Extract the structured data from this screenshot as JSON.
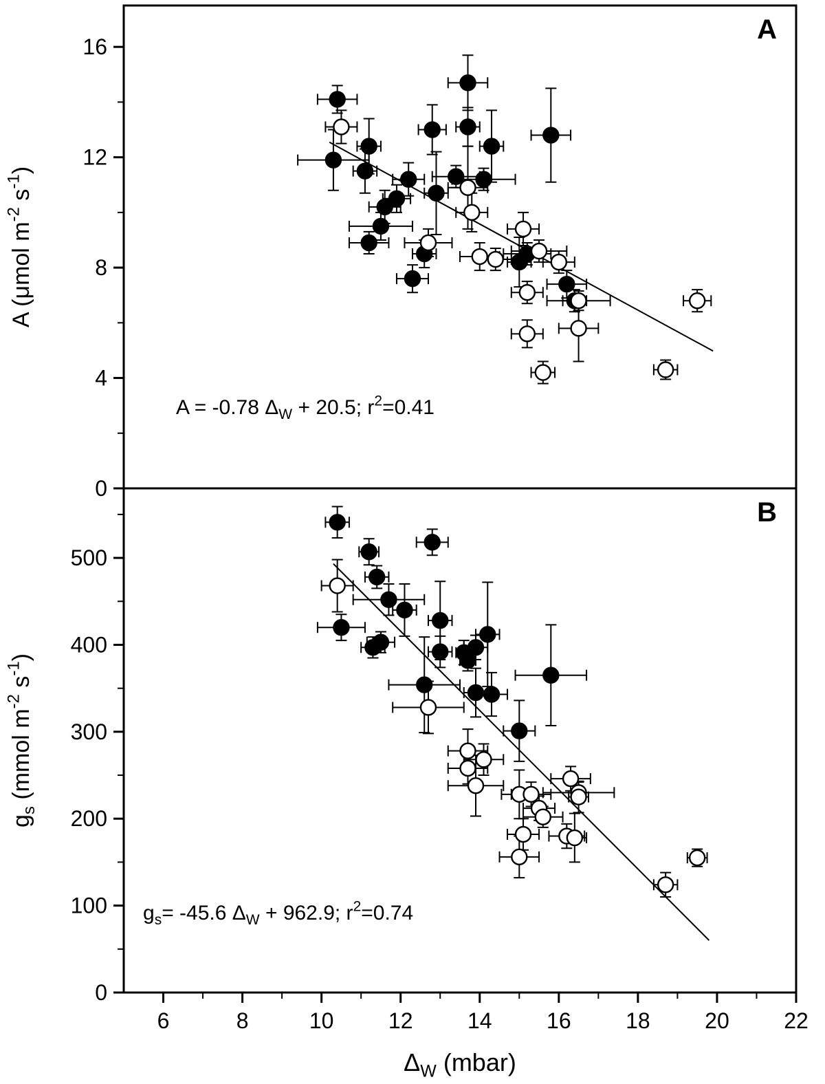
{
  "figure": {
    "background": "#ffffff",
    "axis_color": "#000000",
    "xlabel_text": "ΔW (mbar)",
    "xlabel_segments": [
      {
        "t": "Δ"
      },
      {
        "t": "W",
        "s": "sub"
      },
      {
        "t": " (mbar)"
      }
    ],
    "xlim": [
      5,
      22
    ],
    "xticks": [
      6,
      8,
      10,
      12,
      14,
      16,
      18,
      20,
      22
    ],
    "xminor": [
      7,
      9,
      11,
      13,
      15,
      17,
      19,
      21
    ]
  },
  "chart_data": [
    {
      "id": "A",
      "type": "scatter",
      "panel_label": "A",
      "title": "",
      "ylabel_text": "A (μmol m-2 s-1)",
      "ylabel_segments": [
        {
          "t": "A (μmol m"
        },
        {
          "t": "-2",
          "s": "sup"
        },
        {
          "t": " s"
        },
        {
          "t": "-1",
          "s": "sup"
        },
        {
          "t": ")"
        }
      ],
      "xlim": [
        5,
        22
      ],
      "ylim": [
        0,
        17.5
      ],
      "yticks": [
        0,
        4,
        8,
        12,
        16
      ],
      "yminor": [
        2,
        6,
        10,
        14
      ],
      "grid": false,
      "legend": "none",
      "equation_text": "A = -0.78 ΔW + 20.5;   r2=0.41",
      "equation_segments": [
        {
          "t": "A = -0.78 Δ"
        },
        {
          "t": "W",
          "s": "sub"
        },
        {
          "t": " + 20.5;   r"
        },
        {
          "t": "2",
          "s": "sup"
        },
        {
          "t": "=0.41"
        }
      ],
      "regression": {
        "slope": -0.78,
        "intercept": 20.5,
        "x1": 10.2,
        "x2": 19.9
      },
      "series": [
        {
          "name": "filled-circles",
          "marker": "filled-circle",
          "points": [
            [
              10.4,
              14.1,
              0.5,
              0.5
            ],
            [
              10.3,
              11.9,
              0.9,
              1.1
            ],
            [
              11.2,
              12.4,
              0.3,
              1.0
            ],
            [
              11.1,
              11.5,
              0.3,
              0.8
            ],
            [
              11.6,
              10.2,
              0.4,
              0.6
            ],
            [
              11.9,
              10.5,
              0.35,
              0.5
            ],
            [
              11.5,
              9.5,
              0.8,
              0.5
            ],
            [
              11.2,
              8.9,
              0.5,
              0.4
            ],
            [
              12.2,
              11.2,
              0.4,
              0.6
            ],
            [
              12.8,
              13.0,
              0.35,
              0.9
            ],
            [
              12.9,
              10.7,
              0.3,
              1.5
            ],
            [
              12.6,
              8.5,
              0.3,
              0.5
            ],
            [
              12.3,
              7.6,
              0.4,
              0.5
            ],
            [
              13.7,
              14.7,
              0.5,
              1.0
            ],
            [
              13.7,
              13.1,
              0.3,
              0.7
            ],
            [
              13.4,
              11.3,
              0.6,
              0.4
            ],
            [
              14.1,
              11.2,
              0.8,
              0.4
            ],
            [
              14.3,
              12.4,
              0.3,
              1.3
            ],
            [
              15.0,
              8.2,
              0.3,
              0.9
            ],
            [
              15.2,
              8.5,
              0.6,
              0.4
            ],
            [
              15.8,
              12.8,
              0.5,
              1.7
            ],
            [
              16.2,
              7.4,
              0.5,
              0.5
            ],
            [
              16.4,
              6.8,
              0.3,
              0.4
            ]
          ]
        },
        {
          "name": "open-circles",
          "marker": "open-circle",
          "points": [
            [
              10.5,
              13.1,
              0.4,
              0.6
            ],
            [
              13.7,
              10.9,
              0.5,
              1.5
            ],
            [
              13.8,
              10.0,
              0.4,
              0.7
            ],
            [
              12.7,
              8.9,
              0.6,
              0.5
            ],
            [
              14.0,
              8.4,
              0.5,
              0.5
            ],
            [
              14.4,
              8.3,
              0.4,
              0.4
            ],
            [
              15.1,
              9.4,
              0.4,
              0.6
            ],
            [
              15.2,
              7.1,
              0.4,
              0.4
            ],
            [
              15.5,
              8.6,
              0.7,
              0.4
            ],
            [
              16.0,
              8.2,
              0.4,
              0.4
            ],
            [
              16.5,
              6.8,
              0.8,
              0.35
            ],
            [
              15.2,
              5.6,
              0.4,
              0.5
            ],
            [
              16.5,
              5.8,
              0.5,
              1.2
            ],
            [
              15.6,
              4.2,
              0.3,
              0.4
            ],
            [
              18.7,
              4.3,
              0.3,
              0.35
            ],
            [
              19.5,
              6.8,
              0.35,
              0.4
            ]
          ]
        }
      ]
    },
    {
      "id": "B",
      "type": "scatter",
      "panel_label": "B",
      "title": "",
      "ylabel_text": "gs (mmol m-2 s-1)",
      "ylabel_segments": [
        {
          "t": "g"
        },
        {
          "t": "s",
          "s": "sub"
        },
        {
          "t": " (mmol m"
        },
        {
          "t": "-2",
          "s": "sup"
        },
        {
          "t": " s"
        },
        {
          "t": "-1",
          "s": "sup"
        },
        {
          "t": ")"
        }
      ],
      "xlim": [
        5,
        22
      ],
      "ylim": [
        0,
        580
      ],
      "yticks": [
        0,
        100,
        200,
        300,
        400,
        500
      ],
      "yminor": [
        50,
        150,
        250,
        350,
        450,
        550
      ],
      "grid": false,
      "legend": "none",
      "equation_text": "gs= -45.6 ΔW + 962.9;   r2=0.74",
      "equation_segments": [
        {
          "t": "g"
        },
        {
          "t": "s",
          "s": "sub"
        },
        {
          "t": "= -45.6 Δ"
        },
        {
          "t": "W",
          "s": "sub"
        },
        {
          "t": " + 962.9;   r"
        },
        {
          "t": "2",
          "s": "sup"
        },
        {
          "t": "=0.74"
        }
      ],
      "regression": {
        "slope": -45.6,
        "intercept": 962.9,
        "x1": 10.3,
        "x2": 19.8
      },
      "series": [
        {
          "name": "filled-circles",
          "marker": "filled-circle",
          "points": [
            [
              10.4,
              541,
              0.3,
              18
            ],
            [
              10.5,
              420,
              0.6,
              15
            ],
            [
              11.2,
              507,
              0.25,
              15
            ],
            [
              11.4,
              478,
              0.3,
              13
            ],
            [
              11.7,
              452,
              0.9,
              18
            ],
            [
              12.1,
              440,
              0.3,
              30
            ],
            [
              11.3,
              397,
              0.3,
              12
            ],
            [
              11.5,
              403,
              0.35,
              12
            ],
            [
              12.8,
              518,
              0.4,
              15
            ],
            [
              13.0,
              428,
              0.3,
              45
            ],
            [
              12.6,
              354,
              0.9,
              55
            ],
            [
              13.0,
              392,
              0.3,
              18
            ],
            [
              13.6,
              391,
              0.2,
              14
            ],
            [
              13.7,
              382,
              0.2,
              12
            ],
            [
              13.9,
              397,
              0.3,
              14
            ],
            [
              14.2,
              412,
              0.3,
              60
            ],
            [
              13.9,
              345,
              0.3,
              28
            ],
            [
              14.3,
              343,
              0.4,
              25
            ],
            [
              15.0,
              301,
              0.4,
              35
            ],
            [
              15.8,
              365,
              0.9,
              58
            ]
          ]
        },
        {
          "name": "open-circles",
          "marker": "open-circle",
          "points": [
            [
              10.4,
              468,
              0.4,
              30
            ],
            [
              12.7,
              328,
              0.9,
              30
            ],
            [
              13.7,
              278,
              0.5,
              25
            ],
            [
              13.7,
              258,
              0.5,
              18
            ],
            [
              14.1,
              268,
              0.5,
              18
            ],
            [
              13.9,
              238,
              0.7,
              35
            ],
            [
              15.0,
              228,
              0.45,
              28
            ],
            [
              15.3,
              228,
              0.5,
              14
            ],
            [
              15.5,
              212,
              0.4,
              14
            ],
            [
              15.6,
              202,
              0.5,
              12
            ],
            [
              16.3,
              246,
              0.5,
              14
            ],
            [
              16.5,
              230,
              0.9,
              12
            ],
            [
              16.5,
              225,
              0.25,
              18
            ],
            [
              15.1,
              182,
              0.4,
              18
            ],
            [
              16.2,
              180,
              0.45,
              14
            ],
            [
              16.4,
              178,
              0.3,
              28
            ],
            [
              15.0,
              156,
              0.5,
              24
            ],
            [
              18.7,
              124,
              0.3,
              14
            ],
            [
              19.5,
              155,
              0.25,
              10
            ]
          ]
        }
      ]
    }
  ]
}
